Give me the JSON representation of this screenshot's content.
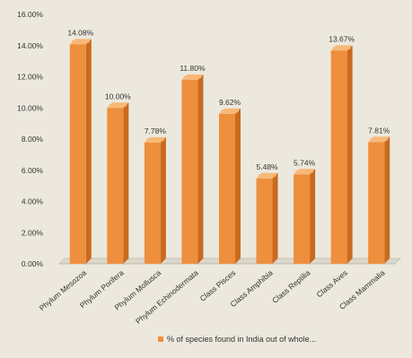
{
  "colors": {
    "bar_front": "#ee8f3e",
    "bar_side": "#c96a1e",
    "bar_top": "#f7b878",
    "text": "#333333",
    "grid_line": "#bfbab0",
    "background": "#ece8dd"
  },
  "chart_data": {
    "type": "bar",
    "style": "3d-cylinder",
    "categories": [
      "Phylum Mesozoa",
      "Phylum Porifera",
      "Phylum Mollusca",
      "Phylum Echinodermata",
      "Class Pisces",
      "Class Amphibia",
      "Class Reptilia",
      "Class Aves",
      "Class Mammalia"
    ],
    "series": [
      {
        "name": "% of species found in India out of whole...",
        "values": [
          14.08,
          10.0,
          7.78,
          11.8,
          9.62,
          5.48,
          5.74,
          13.67,
          7.81
        ],
        "value_labels": [
          "14.08%",
          "10.00%",
          "7.78%",
          "11.80%",
          "9.62%",
          "5.48%",
          "5.74%",
          "13.67%",
          "7.81%"
        ]
      }
    ],
    "y_ticks": [
      "0.00%",
      "2.00%",
      "4.00%",
      "6.00%",
      "8.00%",
      "10.00%",
      "12.00%",
      "14.00%",
      "16.00%"
    ],
    "ylim": [
      0,
      16
    ],
    "grid": false,
    "legend_position": "bottom"
  }
}
